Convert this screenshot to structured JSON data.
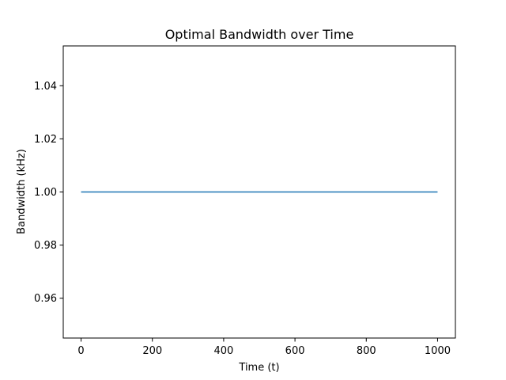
{
  "chart_data": {
    "type": "line",
    "title": "Optimal Bandwidth over Time",
    "xlabel": "Time (t)",
    "ylabel": "Bandwidth (kHz)",
    "xlim": [
      -50,
      1050
    ],
    "ylim": [
      0.945,
      1.055
    ],
    "x_ticks": [
      0,
      200,
      400,
      600,
      800,
      1000
    ],
    "x_tick_labels": [
      "0",
      "200",
      "400",
      "600",
      "800",
      "1000"
    ],
    "y_ticks": [
      0.96,
      0.98,
      1.0,
      1.02,
      1.04
    ],
    "y_tick_labels": [
      "0.96",
      "0.98",
      "1.00",
      "1.02",
      "1.04"
    ],
    "grid": false,
    "series": [
      {
        "color": "#1f77b4",
        "x": [
          0,
          1000
        ],
        "y": [
          1.0,
          1.0
        ]
      }
    ]
  }
}
